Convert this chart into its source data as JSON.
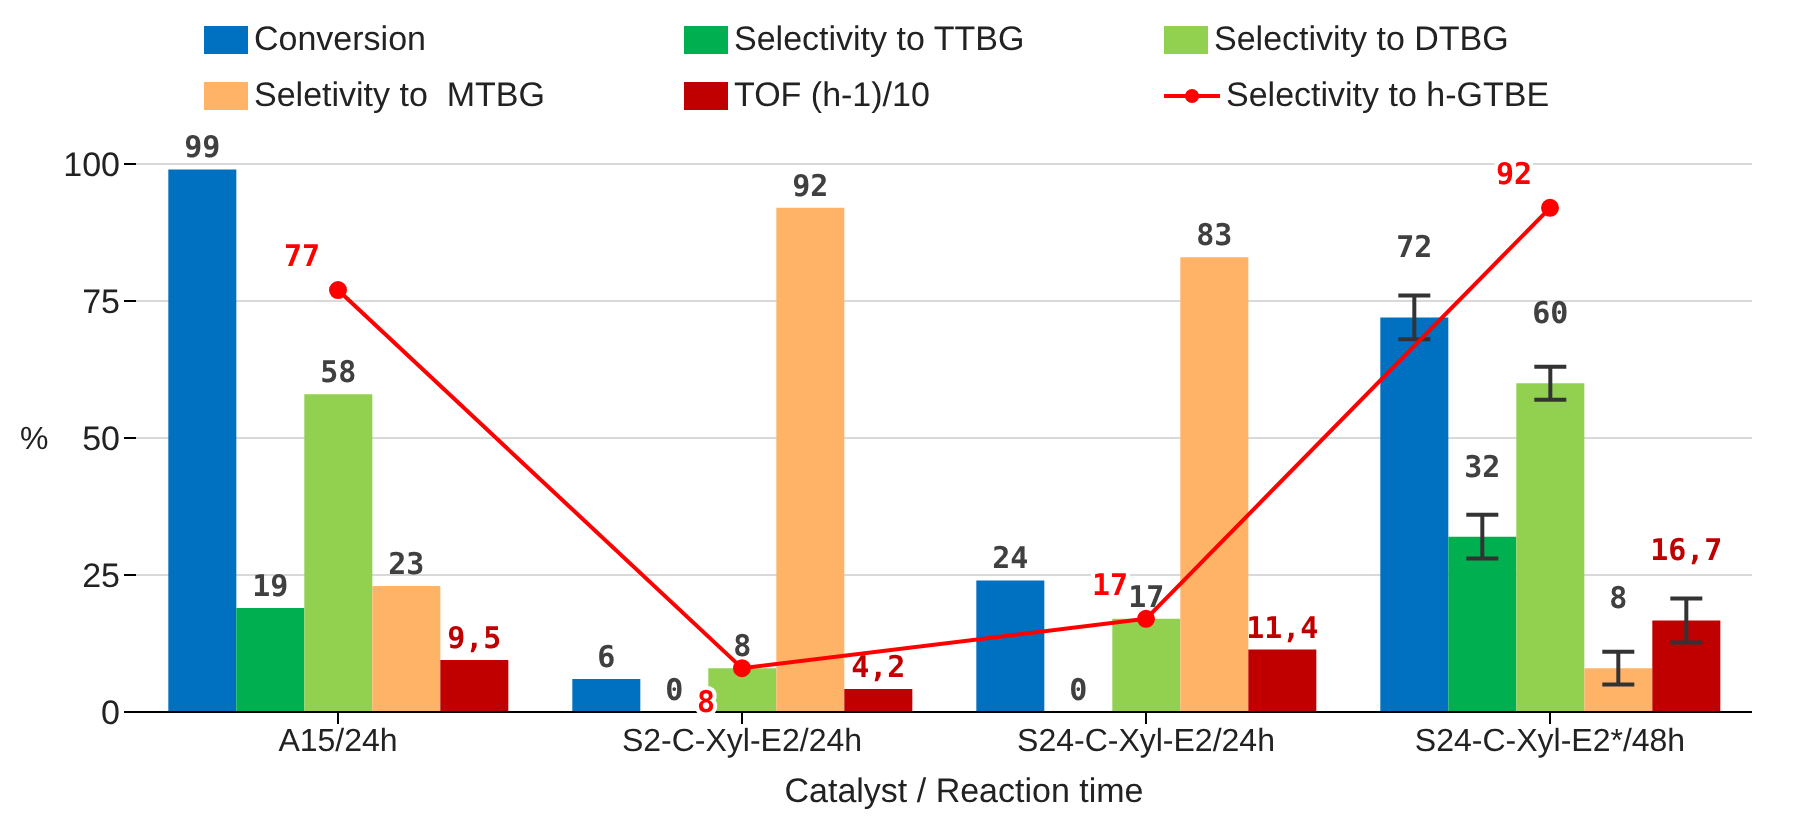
{
  "chart_data": {
    "type": "bar",
    "xlabel": "Catalyst / Reaction time",
    "ylabel": "%",
    "categories": [
      "A15/24h",
      "S2-C-Xyl-E2/24h",
      "S24-C-Xyl-E2/24h",
      "S24-C-Xyl-E2*/48h"
    ],
    "series": [
      {
        "name": "Conversion",
        "color": "#0070c0",
        "values": [
          99,
          6,
          24,
          72
        ],
        "errors": [
          null,
          null,
          null,
          4
        ]
      },
      {
        "name": "Selectivity to TTBG",
        "color": "#00b050",
        "values": [
          19,
          0,
          0,
          32
        ],
        "errors": [
          null,
          null,
          null,
          4
        ]
      },
      {
        "name": "Selectivity to DTBG",
        "color": "#92d050",
        "values": [
          58,
          8,
          17,
          60
        ],
        "errors": [
          null,
          null,
          null,
          3
        ]
      },
      {
        "name": "Seletivity to  MTBG",
        "color": "#ffb366",
        "values": [
          23,
          92,
          83,
          8
        ],
        "errors": [
          null,
          null,
          null,
          3
        ]
      },
      {
        "name": "TOF (h-1)/10",
        "color": "#c00000",
        "values": [
          9.5,
          4.2,
          11.4,
          16.7
        ],
        "value_labels": [
          "9,5",
          "4,2",
          "11,4",
          "16,7"
        ],
        "errors": [
          null,
          null,
          null,
          4
        ]
      },
      {
        "name": "Selectivity to h-GTBE",
        "type": "line",
        "color": "#ff0000",
        "values": [
          77,
          8,
          17,
          92
        ]
      }
    ],
    "ylim": [
      0,
      100
    ],
    "yticks": [
      0,
      25,
      50,
      75,
      100
    ],
    "grid": "y",
    "legend": "top",
    "marker": "circle",
    "data_labels": true
  }
}
